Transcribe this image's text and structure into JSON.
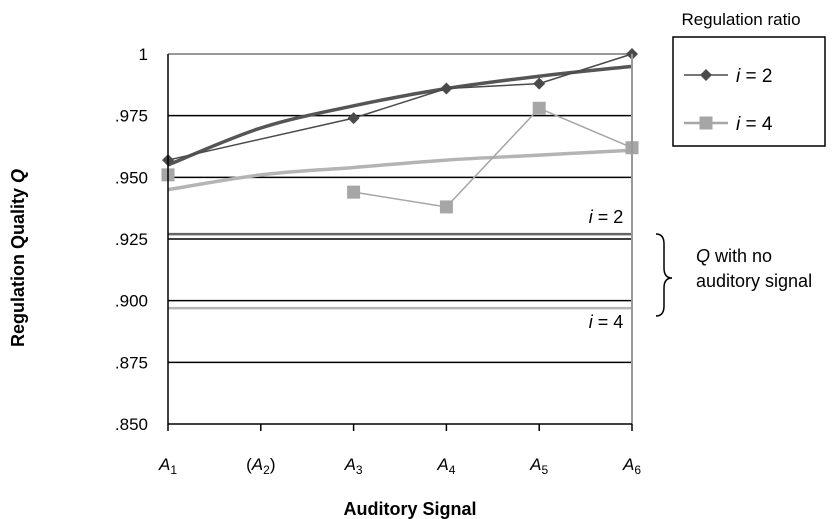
{
  "chart_data": {
    "type": "line",
    "xlabel": "Auditory Signal",
    "ylabel": {
      "text": "Regulation Quality ",
      "var": "Q"
    },
    "x_ticks": [
      {
        "pre": "",
        "main": "A",
        "sub": "1",
        "post": ""
      },
      {
        "pre": "(",
        "main": "A",
        "sub": "2",
        "post": ")"
      },
      {
        "pre": "",
        "main": "A",
        "sub": "3",
        "post": ""
      },
      {
        "pre": "",
        "main": "A",
        "sub": "4",
        "post": ""
      },
      {
        "pre": "",
        "main": "A",
        "sub": "5",
        "post": ""
      },
      {
        "pre": "",
        "main": "A",
        "sub": "6",
        "post": ""
      }
    ],
    "y_ticks": [
      {
        "value": 0.85,
        "label": ".850"
      },
      {
        "value": 0.875,
        "label": ".875"
      },
      {
        "value": 0.9,
        "label": ".900"
      },
      {
        "value": 0.925,
        "label": ".925"
      },
      {
        "value": 0.95,
        "label": ".950"
      },
      {
        "value": 0.975,
        "label": ".975"
      },
      {
        "value": 1.0,
        "label": "1"
      }
    ],
    "ylim": [
      0.85,
      1.0
    ],
    "grid": true,
    "legend": {
      "title": "Regulation ratio",
      "position": "top-right",
      "entries": [
        {
          "var": "i",
          "rest": " = 2",
          "color": "#4a4a4a",
          "marker": "diamond"
        },
        {
          "var": "i",
          "rest": " = 4",
          "color": "#a6a6a6",
          "marker": "square"
        }
      ]
    },
    "series": [
      {
        "color": "#4a4a4a",
        "marker": "diamond",
        "points": [
          {
            "x": "A1",
            "y": 0.957
          },
          {
            "x": "A3",
            "y": 0.974
          },
          {
            "x": "A4",
            "y": 0.986
          },
          {
            "x": "A5",
            "y": 0.988
          },
          {
            "x": "A6",
            "y": 1.0
          }
        ],
        "segments": [
          [
            0,
            1,
            2,
            3,
            4
          ]
        ]
      },
      {
        "color": "#a6a6a6",
        "marker": "square",
        "points": [
          {
            "x": "A1",
            "y": 0.951
          },
          {
            "x": "A3",
            "y": 0.944
          },
          {
            "x": "A4",
            "y": 0.938
          },
          {
            "x": "A5",
            "y": 0.978
          },
          {
            "x": "A6",
            "y": 0.962
          }
        ],
        "segments": [
          [
            1,
            2,
            3,
            4
          ]
        ]
      }
    ],
    "trendlines": [
      {
        "color": "#555555",
        "x": [
          "A1",
          "A2",
          "A3",
          "A4",
          "A5",
          "A6"
        ],
        "y": [
          0.955,
          0.97,
          0.979,
          0.986,
          0.991,
          0.995
        ]
      },
      {
        "color": "#b4b4b4",
        "x": [
          "A1",
          "A2",
          "A3",
          "A4",
          "A5",
          "A6"
        ],
        "y": [
          0.945,
          0.951,
          0.954,
          0.957,
          0.959,
          0.961
        ]
      }
    ],
    "reference_lines": [
      {
        "y": 0.927,
        "color": "#666666",
        "label_var": "i",
        "label_rest": " = 2"
      },
      {
        "y": 0.897,
        "color": "#b4b4b4",
        "label_var": "i",
        "label_rest": " = 4"
      }
    ],
    "annotation": {
      "var": "Q",
      "line1_rest": " with no",
      "line2": "auditory signal"
    }
  }
}
